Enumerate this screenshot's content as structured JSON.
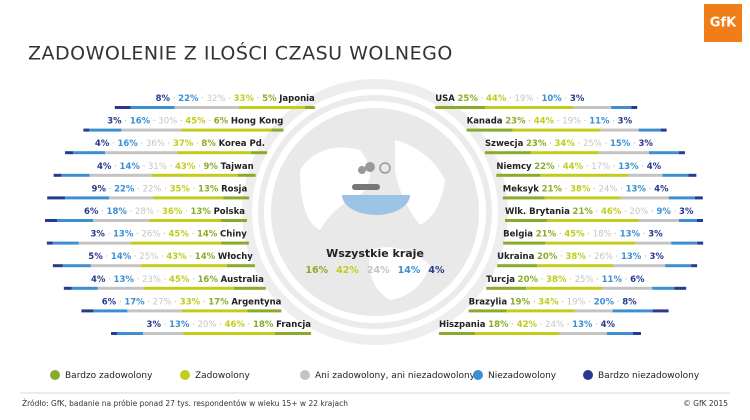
{
  "title": "ZADOWOLENIE Z ILOŚCI CZASU WOLNEGO",
  "logo": "GfK",
  "source": "Źródło: GfK, badanie na próbie ponad 27 tys. respondentów w wieku 15+ w 22 krajach",
  "copyright": "© GfK 2015",
  "chart_data": [
    {
      "type": "bar",
      "orientation": "horizontal",
      "stacked": true,
      "categories": [
        "Japonia",
        "Hong Kong",
        "Korea Pd.",
        "Tajwan",
        "Rosja",
        "Polska",
        "Chiny",
        "Włochy",
        "Australia",
        "Argentyna",
        "Francja"
      ],
      "series": [
        {
          "name": "Bardzo zadowolony",
          "color": "#8aab2a",
          "values": [
            5,
            6,
            8,
            9,
            13,
            13,
            14,
            14,
            16,
            17,
            18
          ],
          "value_labels": [
            "5%",
            "6%",
            "8%",
            "9%",
            "13%",
            "13%",
            "14%",
            "14%",
            "16%",
            "17%",
            "18%"
          ]
        },
        {
          "name": "Zadowolony",
          "color": "#c2cc1c",
          "values": [
            33,
            45,
            37,
            43,
            35,
            36,
            45,
            43,
            45,
            33,
            46
          ],
          "value_labels": [
            "33%",
            "45%",
            "37%",
            "43%",
            "35%",
            "36%",
            "45%",
            "43%",
            "45%",
            "33%",
            "46%"
          ]
        },
        {
          "name": "Ani zadowolony, ani niezadowolony",
          "color": "#c4c4c4",
          "values": [
            32,
            30,
            36,
            31,
            22,
            28,
            26,
            25,
            23,
            27,
            20
          ],
          "value_labels": [
            "32%",
            "30%",
            "36%",
            "31%",
            "22%",
            "28%",
            "26%",
            "25%",
            "23%",
            "27%",
            "20%"
          ]
        },
        {
          "name": "Niezadowolony",
          "color": "#3d8fd2",
          "values": [
            22,
            16,
            16,
            14,
            22,
            18,
            13,
            14,
            13,
            17,
            13
          ],
          "value_labels": [
            "22%",
            "16%",
            "16%",
            "14%",
            "22%",
            "18%",
            "13%",
            "14%",
            "13%",
            "17%",
            "13%"
          ]
        },
        {
          "name": "Bardzo niezadowolony",
          "color": "#283a8e",
          "values": [
            8,
            3,
            4,
            4,
            9,
            6,
            3,
            5,
            4,
            6,
            3
          ],
          "value_labels": [
            "8%",
            "3%",
            "4%",
            "4%",
            "9%",
            "6%",
            "3%",
            "5%",
            "4%",
            "6%",
            "3%"
          ]
        }
      ]
    },
    {
      "type": "bar",
      "orientation": "horizontal",
      "stacked": true,
      "categories": [
        "USA",
        "Kanada",
        "Szwecja",
        "Niemcy",
        "Meksyk",
        "Wlk. Brytania",
        "Belgia",
        "Ukraina",
        "Turcja",
        "Brazylia",
        "Hiszpania"
      ],
      "series": [
        {
          "name": "Bardzo zadowolony",
          "color": "#8aab2a",
          "values": [
            25,
            23,
            23,
            22,
            21,
            21,
            21,
            20,
            20,
            19,
            18
          ],
          "value_labels": [
            "25%",
            "23%",
            "23%",
            "22%",
            "21%",
            "21%",
            "21%",
            "20%",
            "20%",
            "19%",
            "18%"
          ]
        },
        {
          "name": "Zadowolony",
          "color": "#c2cc1c",
          "values": [
            44,
            44,
            34,
            44,
            38,
            46,
            45,
            38,
            38,
            34,
            42
          ],
          "value_labels": [
            "44%",
            "44%",
            "34%",
            "44%",
            "38%",
            "46%",
            "45%",
            "38%",
            "38%",
            "34%",
            "42%"
          ]
        },
        {
          "name": "Ani zadowolony, ani niezadowolony",
          "color": "#c4c4c4",
          "values": [
            19,
            19,
            25,
            17,
            24,
            20,
            18,
            26,
            25,
            19,
            24
          ],
          "value_labels": [
            "19%",
            "19%",
            "25%",
            "17%",
            "24%",
            "20%",
            "18%",
            "26%",
            "25%",
            "19%",
            "24%"
          ]
        },
        {
          "name": "Niezadowolony",
          "color": "#3d8fd2",
          "values": [
            10,
            11,
            15,
            13,
            13,
            9,
            13,
            13,
            11,
            20,
            13
          ],
          "value_labels": [
            "10%",
            "11%",
            "15%",
            "13%",
            "13%",
            "9%",
            "13%",
            "13%",
            "11%",
            "20%",
            "13%"
          ]
        },
        {
          "name": "Bardzo niezadowolony",
          "color": "#283a8e",
          "values": [
            3,
            3,
            3,
            4,
            4,
            3,
            3,
            3,
            6,
            8,
            4
          ],
          "value_labels": [
            "3%",
            "3%",
            "3%",
            "4%",
            "4%",
            "3%",
            "3%",
            "3%",
            "6%",
            "8%",
            "4%"
          ]
        }
      ]
    },
    {
      "type": "summary",
      "categories": [
        "Wszystkie kraje"
      ],
      "series": [
        {
          "name": "Bardzo zadowolony",
          "color": "#8aab2a",
          "values": [
            16
          ],
          "value_labels": [
            "16%"
          ]
        },
        {
          "name": "Zadowolony",
          "color": "#c2cc1c",
          "values": [
            42
          ],
          "value_labels": [
            "42%"
          ]
        },
        {
          "name": "Ani zadowolony, ani niezadowolony",
          "color": "#c4c4c4",
          "values": [
            24
          ],
          "value_labels": [
            "24%"
          ]
        },
        {
          "name": "Niezadowolony",
          "color": "#3d8fd2",
          "values": [
            14
          ],
          "value_labels": [
            "14%"
          ]
        },
        {
          "name": "Bardzo niezadowolony",
          "color": "#283a8e",
          "values": [
            4
          ],
          "value_labels": [
            "4%"
          ]
        }
      ]
    }
  ]
}
